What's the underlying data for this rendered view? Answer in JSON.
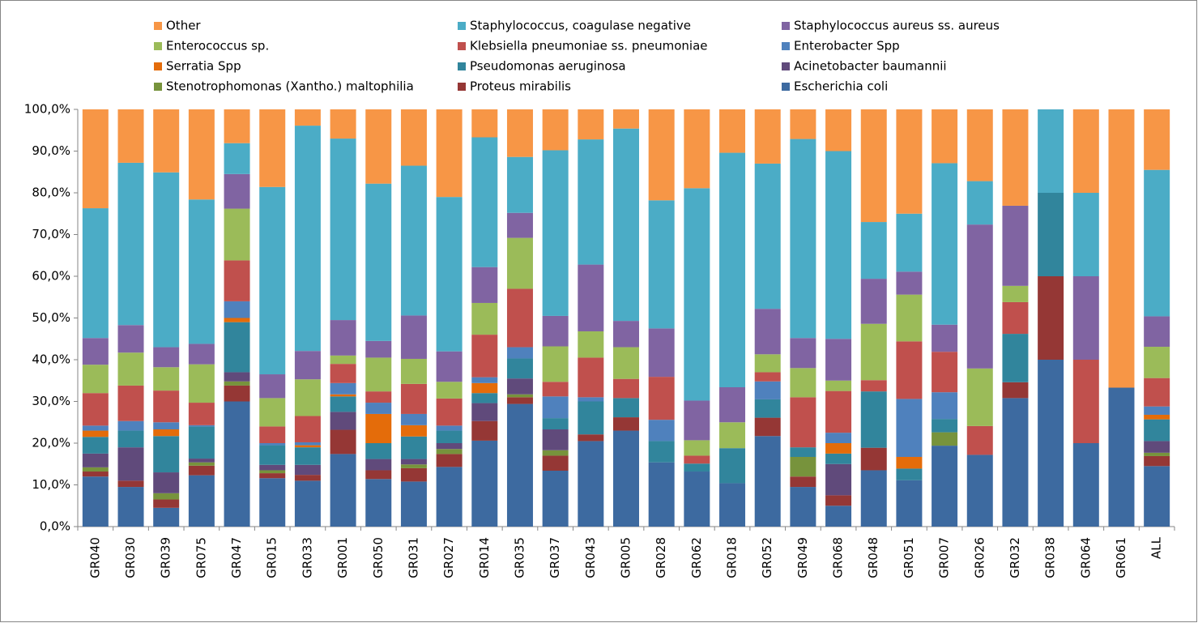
{
  "chart_data": {
    "type": "stacked_bar",
    "categories": [
      "GR040",
      "GR030",
      "GR039",
      "GR075",
      "GR047",
      "GR015",
      "GR033",
      "GR001",
      "GR050",
      "GR031",
      "GR027",
      "GR014",
      "GR035",
      "GR037",
      "GR043",
      "GR005",
      "GR028",
      "GR062",
      "GR018",
      "GR052",
      "GR049",
      "GR068",
      "GR048",
      "GR051",
      "GR007",
      "GR026",
      "GR032",
      "GR038",
      "GR064",
      "GR061",
      "ALL"
    ],
    "series": [
      {
        "name": "Escherichia coli",
        "color": "#3d6aa0",
        "values": [
          12.0,
          9.5,
          4.5,
          12.3,
          30,
          11.6,
          11,
          17.4,
          11.4,
          10.8,
          14.3,
          20.6,
          29.4,
          13.4,
          20.5,
          23,
          15.4,
          13.2,
          10.4,
          21.7,
          9.5,
          5,
          13.5,
          11.1,
          19.4,
          17.2,
          30.8,
          40,
          20,
          33.3,
          14.5
        ]
      },
      {
        "name": "Proteus mirabilis",
        "color": "#953735",
        "values": [
          1.2,
          1.5,
          2,
          2.3,
          3.8,
          1.2,
          1.4,
          5.8,
          2.1,
          3.2,
          3.1,
          4.7,
          1.6,
          3.6,
          1.6,
          3.2,
          0,
          0,
          0,
          4.4,
          2.5,
          2.5,
          5.4,
          0,
          0,
          0,
          3.8,
          20,
          0,
          0,
          2.4
        ]
      },
      {
        "name": "Stenotrophomonas (Xantho.) maltophilia",
        "color": "#77933c",
        "values": [
          1.0,
          0,
          1.5,
          0.8,
          1,
          0.7,
          0,
          0,
          0,
          0.9,
          1.2,
          0,
          0.7,
          1.3,
          0,
          0,
          0,
          0,
          0,
          0,
          4.7,
          0,
          0,
          0,
          3.2,
          0,
          0,
          0,
          0,
          0,
          0.8
        ]
      },
      {
        "name": "Acinetobacter baumannii",
        "color": "#604a7b",
        "values": [
          3.3,
          8,
          5,
          0.9,
          2.2,
          1.3,
          2.4,
          4.3,
          2.7,
          1.3,
          1.4,
          4.3,
          3.8,
          5,
          0,
          0,
          0,
          0,
          0,
          0,
          0,
          7.5,
          0,
          0,
          0,
          0,
          0,
          0,
          0,
          0,
          2.8
        ]
      },
      {
        "name": "Pseudomonas aeruginosa",
        "color": "#31859c",
        "values": [
          4.0,
          4,
          8.7,
          7.7,
          12,
          4.7,
          4.2,
          3.7,
          3.8,
          5.4,
          3,
          2.4,
          4.8,
          2.7,
          7.9,
          4.6,
          5.1,
          1.9,
          8.4,
          4.4,
          2.3,
          2.5,
          13.5,
          2.8,
          3.2,
          0,
          11.6,
          20,
          0,
          0,
          5.2
        ]
      },
      {
        "name": "Serratia Spp",
        "color": "#e46c0a",
        "values": [
          1.5,
          0,
          1.6,
          0,
          1,
          0,
          0.5,
          0.5,
          7,
          2.7,
          0,
          2.4,
          0,
          0,
          0,
          0,
          0,
          0,
          0,
          0,
          0,
          2.5,
          0,
          2.8,
          0,
          0,
          0,
          0,
          0,
          0,
          1.1
        ]
      },
      {
        "name": "Enterobacter Spp",
        "color": "#4f81bd",
        "values": [
          1.2,
          2.3,
          1.7,
          0.3,
          4,
          0.5,
          0.7,
          2.7,
          2.7,
          2.7,
          1.2,
          1.4,
          2.7,
          5.2,
          1,
          0,
          5.1,
          0,
          0,
          4.3,
          0,
          2.5,
          0,
          13.9,
          6.4,
          0,
          0,
          0,
          0,
          0,
          2
        ]
      },
      {
        "name": "Klebsiella pneumoniae ss. pneumoniae",
        "color": "#c0504d",
        "values": [
          7.8,
          8.5,
          7.6,
          5.4,
          9.8,
          4,
          6.3,
          4.6,
          2.7,
          7.2,
          6.5,
          10.2,
          14,
          3.5,
          9.5,
          4.6,
          10.3,
          1.9,
          0,
          2.2,
          12,
          10,
          2.7,
          13.8,
          9.7,
          6.9,
          7.6,
          0,
          20,
          0,
          6.8
        ]
      },
      {
        "name": "Enterococcus sp.",
        "color": "#9bbb59",
        "values": [
          6.8,
          7.9,
          5.6,
          9.2,
          12.4,
          6.8,
          8.8,
          2,
          8.1,
          6,
          4,
          7.6,
          12.2,
          8.5,
          6.3,
          7.6,
          0,
          3.7,
          6.2,
          4.3,
          7,
          2.5,
          13.5,
          11.2,
          0,
          13.8,
          3.9,
          0,
          0,
          0,
          7.5
        ]
      },
      {
        "name": "Staphylococcus aureus ss. aureus",
        "color": "#8064a2",
        "values": [
          6.4,
          6.6,
          4.8,
          4.9,
          8.3,
          5.7,
          6.8,
          8.5,
          4,
          10.4,
          7.3,
          8.6,
          6,
          7.3,
          16,
          6.3,
          11.6,
          9.5,
          8.4,
          10.9,
          7.2,
          10,
          10.8,
          5.5,
          6.5,
          34.5,
          19.2,
          0,
          20,
          0,
          7.3
        ]
      },
      {
        "name": "Staphylococcus, coagulase negative",
        "color": "#4bacc6",
        "values": [
          31.1,
          38.9,
          41.9,
          34.6,
          7.4,
          44.9,
          54,
          43.5,
          37.7,
          35.9,
          37,
          31.1,
          13.4,
          39.7,
          30,
          46.1,
          30.7,
          50.9,
          56.2,
          34.8,
          47.7,
          45,
          13.6,
          13.9,
          38.7,
          10.4,
          0,
          20,
          20,
          0,
          35.1
        ]
      },
      {
        "name": "Other",
        "color": "#f79646",
        "values": [
          23.7,
          12.8,
          15.1,
          21.6,
          8.1,
          18.6,
          3.9,
          7,
          17.8,
          13.5,
          21,
          6.7,
          11.4,
          9.8,
          7.2,
          4.6,
          21.8,
          18.9,
          10.4,
          13,
          7.1,
          10,
          27,
          25,
          12.9,
          17.2,
          23.1,
          0,
          20,
          66.7,
          14.5
        ]
      }
    ],
    "ylim": [
      0,
      100
    ],
    "yticks": [
      {
        "value": 0,
        "label": "0,0%"
      },
      {
        "value": 10,
        "label": "10,0%"
      },
      {
        "value": 20,
        "label": "20,0%"
      },
      {
        "value": 30,
        "label": "30,0%"
      },
      {
        "value": 40,
        "label": "40,0%"
      },
      {
        "value": 50,
        "label": "50,0%"
      },
      {
        "value": 60,
        "label": "60,0%"
      },
      {
        "value": 70,
        "label": "70,0%"
      },
      {
        "value": 80,
        "label": "80,0%"
      },
      {
        "value": 90,
        "label": "90,0%"
      },
      {
        "value": 100,
        "label": "100,0%"
      }
    ],
    "grid": false
  }
}
